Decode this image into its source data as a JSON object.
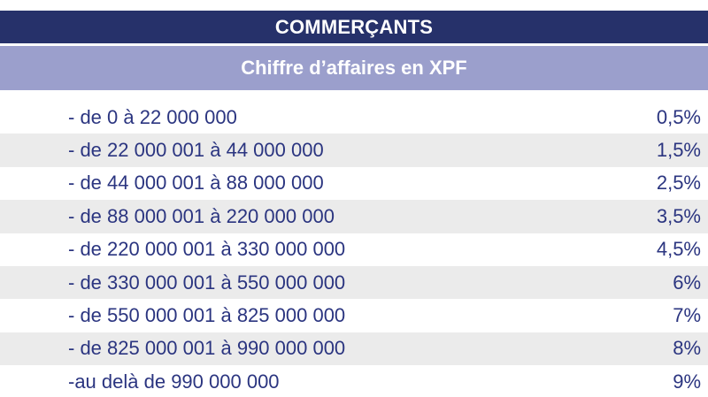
{
  "header": {
    "title": "COMMERÇANTS",
    "subtitle": "Chiffre d’affaires en XPF"
  },
  "rows": [
    {
      "range": "- de 0 à 22 000 000",
      "rate": "0,5%"
    },
    {
      "range": "- de 22 000 001 à 44 000 000",
      "rate": "1,5%"
    },
    {
      "range": "- de 44 000 001 à 88 000 000",
      "rate": "2,5%"
    },
    {
      "range": "- de 88 000 001 à 220 000 000",
      "rate": "3,5%"
    },
    {
      "range": "- de 220 000 001 à 330 000 000",
      "rate": "4,5%"
    },
    {
      "range": "- de 330 000 001 à 550 000 000",
      "rate": "6%"
    },
    {
      "range": "- de 550 000 001 à 825 000 000",
      "rate": "7%"
    },
    {
      "range": "- de 825 000 001 à 990 000 000",
      "rate": "8%"
    },
    {
      "range": "-au delà de 990 000 000",
      "rate": "9%"
    }
  ],
  "colors": {
    "title_bg": "#26316a",
    "subtitle_bg": "#9b9fcc",
    "row_shade": "#ebebeb",
    "text": "#2b3580"
  }
}
